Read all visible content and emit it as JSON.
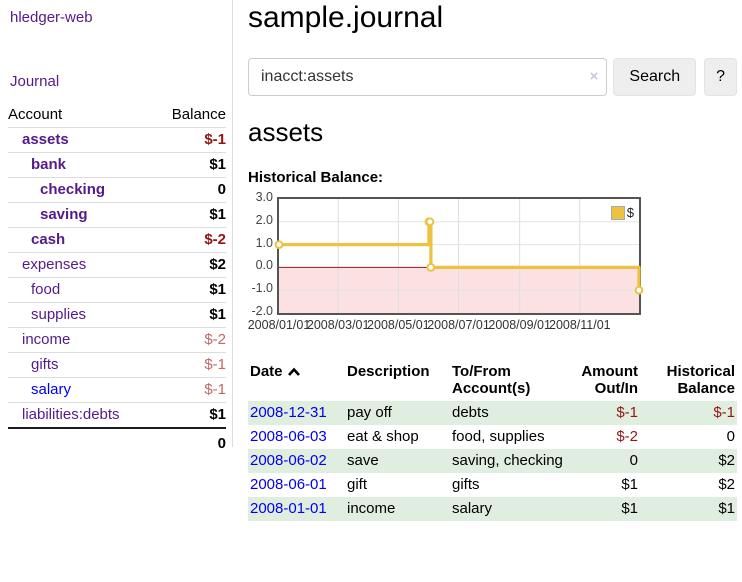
{
  "colors": {
    "link_purple": "#551a8b",
    "link_blue": "#0000ee",
    "negative_strong": "#941414",
    "negative_soft": "#c06868",
    "row_stripe_green": "#e0eee0",
    "series_gold": "#edc240",
    "chart_border": "#545454"
  },
  "app": {
    "brand": "hledger-web",
    "nav_journal": "Journal"
  },
  "sidebar": {
    "header": {
      "account": "Account",
      "balance": "Balance"
    },
    "rows": [
      {
        "name": "assets",
        "balance": "$-1"
      },
      {
        "name": "bank",
        "balance": "$1"
      },
      {
        "name": "checking",
        "balance": "0"
      },
      {
        "name": "saving",
        "balance": "$1"
      },
      {
        "name": "cash",
        "balance": "$-2"
      },
      {
        "name": "expenses",
        "balance": "$2"
      },
      {
        "name": "food",
        "balance": "$1"
      },
      {
        "name": "supplies",
        "balance": "$1"
      },
      {
        "name": "income",
        "balance": "$-2"
      },
      {
        "name": "gifts",
        "balance": "$-1"
      },
      {
        "name": "salary",
        "balance": "$-1"
      },
      {
        "name": "liabilities:debts",
        "balance": "$1"
      }
    ],
    "total": "0"
  },
  "main": {
    "title": "sample.journal",
    "search": {
      "value": "inacct:assets",
      "clear_icon": "×",
      "button_label": "Search",
      "help_label": "?"
    },
    "heading": "assets",
    "chart_label": "Historical Balance:"
  },
  "chart_data": {
    "type": "line",
    "title": "Historical Balance",
    "step": true,
    "series": [
      {
        "name": "$",
        "color": "#edc240",
        "points": [
          [
            "2008-01-01",
            1
          ],
          [
            "2008-06-01",
            2
          ],
          [
            "2008-06-02",
            2
          ],
          [
            "2008-06-03",
            0
          ],
          [
            "2008-12-31",
            -1
          ]
        ]
      }
    ],
    "xlim": [
      "2008-01-01",
      "2008-12-31"
    ],
    "ylim": [
      -2,
      3
    ],
    "x_ticks": [
      "2008/01/01",
      "2008/03/01",
      "2008/05/01",
      "2008/07/01",
      "2008/09/01",
      "2008/11/01"
    ],
    "y_ticks": [
      "3.0",
      "2.0",
      "1.0",
      "0.0",
      "-1.0",
      "-2.0"
    ],
    "grid": true,
    "legend_position": "top-right",
    "negative_region_fill": "#fbe1e1",
    "zero_line_color": "#8b1a1a"
  },
  "table": {
    "columns": [
      {
        "line1": "Date",
        "line2": ""
      },
      {
        "line1": "Description",
        "line2": ""
      },
      {
        "line1": "To/From",
        "line2": "Account(s)"
      },
      {
        "line1": "Amount",
        "line2": "Out/In"
      },
      {
        "line1": "Historical",
        "line2": "Balance"
      }
    ],
    "rows": [
      {
        "date": "2008-12-31",
        "description": "pay off",
        "accounts": "debts",
        "amount": "$-1",
        "balance": "$-1"
      },
      {
        "date": "2008-06-03",
        "description": "eat & shop",
        "accounts": "food, supplies",
        "amount": "$-2",
        "balance": "0"
      },
      {
        "date": "2008-06-02",
        "description": "save",
        "accounts": "saving, checking",
        "amount": "0",
        "balance": "$2"
      },
      {
        "date": "2008-06-01",
        "description": "gift",
        "accounts": "gifts",
        "amount": "$1",
        "balance": "$2"
      },
      {
        "date": "2008-01-01",
        "description": "income",
        "accounts": "salary",
        "amount": "$1",
        "balance": "$1"
      }
    ]
  }
}
